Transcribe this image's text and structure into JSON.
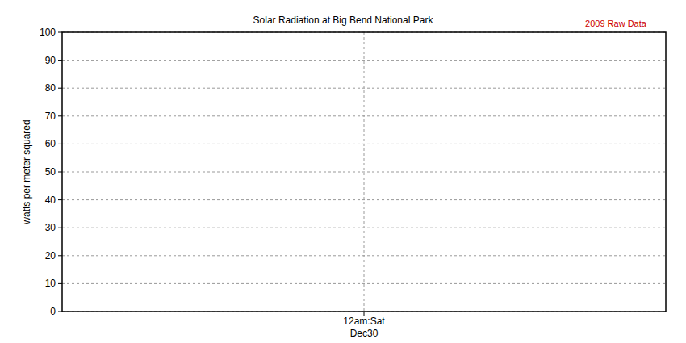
{
  "chart_data": {
    "type": "line",
    "title": "Solar Radiation at Big Bend National Park",
    "annotation": "2009 Raw Data",
    "annotation_color": "#cc0000",
    "ylabel": "watts per meter squared",
    "categories": [
      "12am:Sat\nDec30"
    ],
    "values": [
      null
    ],
    "color": "#0000cc",
    "ylim": [
      0,
      100
    ],
    "yticks": [
      0,
      10,
      20,
      30,
      40,
      50,
      60,
      70,
      80,
      90,
      100
    ],
    "grid": true
  }
}
